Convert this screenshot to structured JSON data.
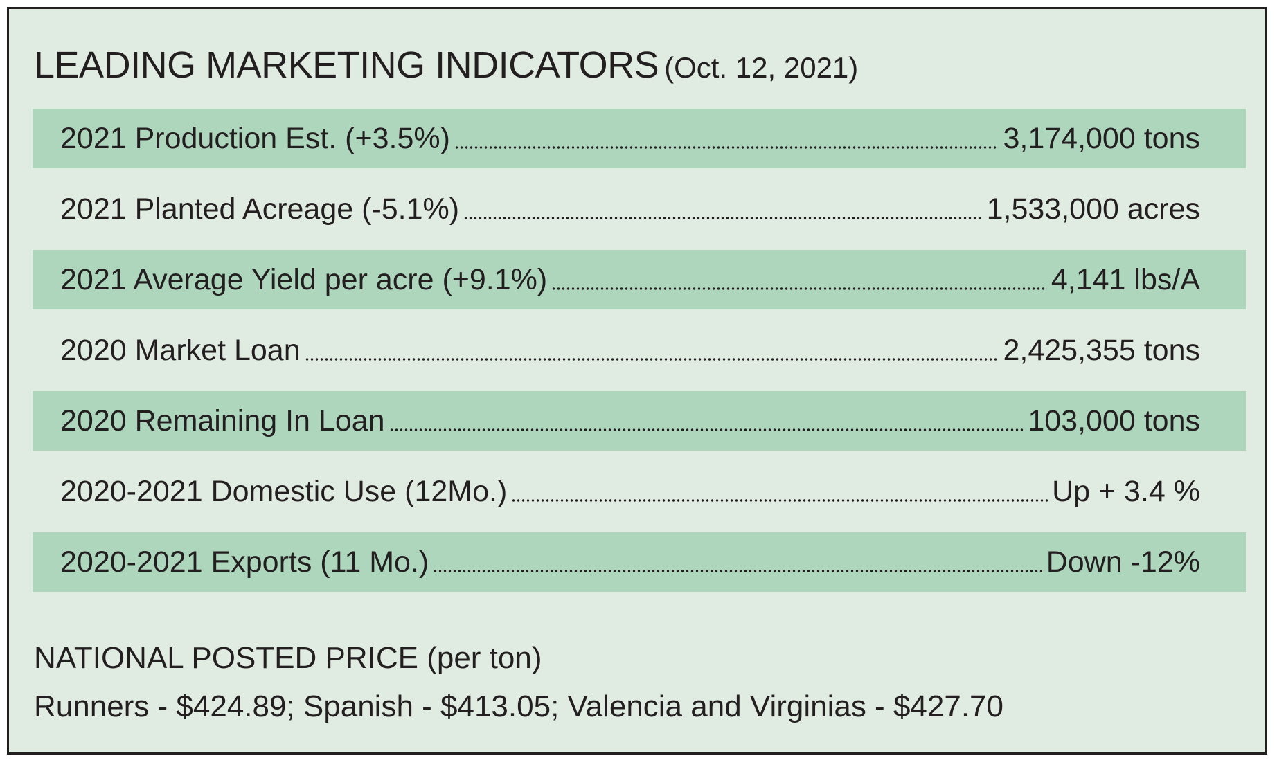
{
  "title": {
    "main": "LEADING MARKETING INDICATORS",
    "date": "(Oct. 12, 2021)"
  },
  "indicators": [
    {
      "label": "2021 Production Est. (+3.5%)",
      "value": "3,174,000 tons"
    },
    {
      "label": "2021 Planted Acreage (-5.1%)",
      "value": "1,533,000 acres"
    },
    {
      "label": "2021 Average Yield per acre  (+9.1%)",
      "value": "4,141 lbs/A"
    },
    {
      "label": "2020 Market Loan",
      "value": "2,425,355 tons"
    },
    {
      "label": "2020 Remaining In Loan",
      "value": "103,000 tons"
    },
    {
      "label": "2020-2021 Domestic Use (12Mo.)",
      "value": "Up  + 3.4 %"
    },
    {
      "label": "2020-2021 Exports (11 Mo.)",
      "value": "Down -12%"
    }
  ],
  "national_price": {
    "heading": "NATIONAL POSTED PRICE (per ton)",
    "line": "Runners - $424.89; Spanish - $413.05; Valencia and Virginias - $427.70"
  },
  "colors": {
    "panel_background": "#e0ece1",
    "row_shade": "#add6bd",
    "text": "#231f20"
  }
}
